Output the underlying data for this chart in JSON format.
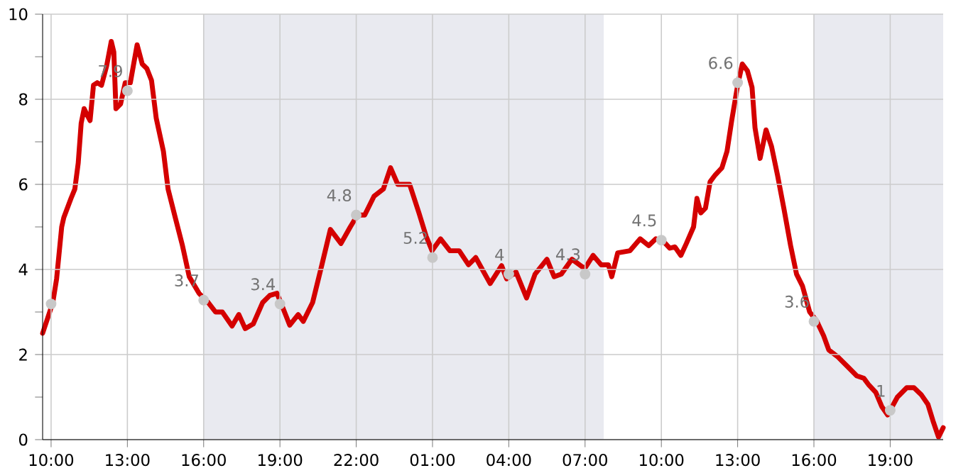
{
  "chart_data": {
    "type": "line",
    "xlim": [
      "2000-01-01T09:40",
      "2000-01-02T21:05"
    ],
    "ylim": [
      0,
      10
    ],
    "xticks": [
      {
        "value": "2000-01-01T10:00",
        "label": "10:00"
      },
      {
        "value": "2000-01-01T13:00",
        "label": "13:00"
      },
      {
        "value": "2000-01-01T16:00",
        "label": "16:00"
      },
      {
        "value": "2000-01-01T19:00",
        "label": "19:00"
      },
      {
        "value": "2000-01-01T22:00",
        "label": "22:00"
      },
      {
        "value": "2000-01-02T01:00",
        "label": "01:00"
      },
      {
        "value": "2000-01-02T04:00",
        "label": "04:00"
      },
      {
        "value": "2000-01-02T07:00",
        "label": "07:00"
      },
      {
        "value": "2000-01-02T10:00",
        "label": "10:00"
      },
      {
        "value": "2000-01-02T13:00",
        "label": "13:00"
      },
      {
        "value": "2000-01-02T16:00",
        "label": "16:00"
      },
      {
        "value": "2000-01-02T19:00",
        "label": "19:00"
      }
    ],
    "yticks": [
      0,
      {
        "value": 1,
        "label": null
      },
      2,
      {
        "value": 3,
        "label": null
      },
      4,
      {
        "value": 5,
        "label": null
      },
      6,
      {
        "value": 7,
        "label": null
      },
      8,
      {
        "value": 9,
        "label": null
      },
      10
    ],
    "grid": true,
    "bands": [
      {
        "axis": "x",
        "from": "2000-01-01T16:00",
        "to": "2000-01-02T07:44",
        "color": "#e9eaf0"
      },
      {
        "axis": "x",
        "from": "2000-01-02T16:00",
        "to": "2000-01-02T21:05",
        "color": "#e9eaf0"
      }
    ],
    "series": [
      {
        "color": "#d40000",
        "marker": "none",
        "x": [
          "2000-01-01T09:40",
          "2000-01-01T10:04",
          "2000-01-01T10:13",
          "2000-01-01T10:25",
          "2000-01-01T10:30",
          "2000-01-01T10:47",
          "2000-01-01T10:56",
          "2000-01-01T11:04",
          "2000-01-01T11:11",
          "2000-01-01T11:18",
          "2000-01-01T11:26",
          "2000-01-01T11:32",
          "2000-01-01T11:40",
          "2000-01-01T11:49",
          "2000-01-01T11:59",
          "2000-01-01T12:11",
          "2000-01-01T12:22",
          "2000-01-01T12:28",
          "2000-01-01T12:33",
          "2000-01-01T12:44",
          "2000-01-01T12:55",
          "2000-01-01T13:07",
          "2000-01-01T13:14",
          "2000-01-01T13:23",
          "2000-01-01T13:35",
          "2000-01-01T13:46",
          "2000-01-01T13:57",
          "2000-01-01T14:08",
          "2000-01-01T14:25",
          "2000-01-01T14:36",
          "2000-01-01T14:53",
          "2000-01-01T15:10",
          "2000-01-01T15:26",
          "2000-01-01T15:49",
          "2000-01-01T16:11",
          "2000-01-01T16:28",
          "2000-01-01T16:44",
          "2000-01-01T17:07",
          "2000-01-01T17:23",
          "2000-01-01T17:38",
          "2000-01-01T17:57",
          "2000-01-01T18:19",
          "2000-01-01T18:36",
          "2000-01-01T18:53",
          "2000-01-01T19:04",
          "2000-01-01T19:23",
          "2000-01-01T19:43",
          "2000-01-01T19:55",
          "2000-01-01T20:17",
          "2000-01-01T20:39",
          "2000-01-01T20:59",
          "2000-01-01T21:24",
          "2000-01-01T21:46",
          "2000-01-01T22:03",
          "2000-01-01T22:20",
          "2000-01-01T22:42",
          "2000-01-01T23:04",
          "2000-01-01T23:21",
          "2000-01-01T23:38",
          "2000-01-02T00:06",
          "2000-01-02T00:28",
          "2000-01-02T00:45",
          "2000-01-02T00:59",
          "2000-01-02T01:19",
          "2000-01-02T01:41",
          "2000-01-02T02:03",
          "2000-01-02T02:25",
          "2000-01-02T02:42",
          "2000-01-02T03:16",
          "2000-01-02T03:43",
          "2000-01-02T03:55",
          "2000-01-02T04:17",
          "2000-01-02T04:42",
          "2000-01-02T05:02",
          "2000-01-02T05:30",
          "2000-01-02T05:47",
          "2000-01-02T06:04",
          "2000-01-02T06:29",
          "2000-01-02T06:59",
          "2000-01-02T07:19",
          "2000-01-02T07:38",
          "2000-01-02T07:55",
          "2000-01-02T08:03",
          "2000-01-02T08:17",
          "2000-01-02T08:46",
          "2000-01-02T09:10",
          "2000-01-02T09:30",
          "2000-01-02T09:47",
          "2000-01-02T10:04",
          "2000-01-02T10:20",
          "2000-01-02T10:32",
          "2000-01-02T10:46",
          "2000-01-02T10:59",
          "2000-01-02T11:16",
          "2000-01-02T11:24",
          "2000-01-02T11:33",
          "2000-01-02T11:44",
          "2000-01-02T11:55",
          "2000-01-02T12:07",
          "2000-01-02T12:23",
          "2000-01-02T12:35",
          "2000-01-02T12:46",
          "2000-01-02T13:00",
          "2000-01-02T13:11",
          "2000-01-02T13:23",
          "2000-01-02T13:34",
          "2000-01-02T13:41",
          "2000-01-02T13:53",
          "2000-01-02T14:07",
          "2000-01-02T14:20",
          "2000-01-02T14:34",
          "2000-01-02T14:49",
          "2000-01-02T15:05",
          "2000-01-02T15:19",
          "2000-01-02T15:33",
          "2000-01-02T15:50",
          "2000-01-02T16:07",
          "2000-01-02T16:23",
          "2000-01-02T16:35",
          "2000-01-02T16:57",
          "2000-01-02T17:19",
          "2000-01-02T17:41",
          "2000-01-02T17:58",
          "2000-01-02T18:10",
          "2000-01-02T18:26",
          "2000-01-02T18:40",
          "2000-01-02T18:54",
          "2000-01-02T19:17",
          "2000-01-02T19:39",
          "2000-01-02T19:56",
          "2000-01-02T20:13",
          "2000-01-02T20:29",
          "2000-01-02T20:41",
          "2000-01-02T20:54",
          "2000-01-02T21:05"
        ],
        "values": [
          2.5,
          3.22,
          3.78,
          5.0,
          5.22,
          5.67,
          5.89,
          6.5,
          7.44,
          7.78,
          7.61,
          7.5,
          8.33,
          8.39,
          8.33,
          8.78,
          9.36,
          9.11,
          7.78,
          7.89,
          8.39,
          8.39,
          8.78,
          9.28,
          8.83,
          8.72,
          8.44,
          7.56,
          6.78,
          5.89,
          5.22,
          4.56,
          3.83,
          3.44,
          3.22,
          3.0,
          3.0,
          2.67,
          2.94,
          2.61,
          2.72,
          3.22,
          3.39,
          3.44,
          3.17,
          2.69,
          2.94,
          2.78,
          3.22,
          4.11,
          4.94,
          4.61,
          5.0,
          5.28,
          5.28,
          5.72,
          5.89,
          6.39,
          6.0,
          6.0,
          5.33,
          4.78,
          4.44,
          4.72,
          4.44,
          4.44,
          4.11,
          4.28,
          3.67,
          4.09,
          3.78,
          3.94,
          3.33,
          3.89,
          4.24,
          3.83,
          3.89,
          4.24,
          4.02,
          4.33,
          4.11,
          4.11,
          3.83,
          4.39,
          4.44,
          4.72,
          4.56,
          4.72,
          4.67,
          4.5,
          4.53,
          4.33,
          4.61,
          5.0,
          5.67,
          5.33,
          5.44,
          6.06,
          6.22,
          6.39,
          6.78,
          7.5,
          8.33,
          8.83,
          8.67,
          8.28,
          7.33,
          6.61,
          7.28,
          6.89,
          6.22,
          5.44,
          4.56,
          3.89,
          3.61,
          3.0,
          2.78,
          2.44,
          2.11,
          1.94,
          1.72,
          1.5,
          1.44,
          1.28,
          1.11,
          0.78,
          0.58,
          1.0,
          1.22,
          1.22,
          1.06,
          0.83,
          0.44,
          0.06,
          0.28
        ]
      },
      {
        "type": "scatter",
        "color": "#c8c8c8",
        "marker": "circle",
        "x": [
          "2000-01-01T10:00",
          "2000-01-01T13:00",
          "2000-01-01T16:00",
          "2000-01-01T19:00",
          "2000-01-01T22:00",
          "2000-01-02T01:00",
          "2000-01-02T04:00",
          "2000-01-02T07:00",
          "2000-01-02T10:00",
          "2000-01-02T13:00",
          "2000-01-02T16:00",
          "2000-01-02T19:00"
        ],
        "values": [
          3.19,
          8.2,
          3.28,
          3.19,
          5.28,
          4.28,
          3.89,
          3.89,
          4.69,
          8.39,
          2.78,
          0.69
        ]
      }
    ],
    "annotations": [
      {
        "text": "7.9",
        "x": "2000-01-01T13:00",
        "y": 8.2
      },
      {
        "text": "3.7",
        "x": "2000-01-01T16:00",
        "y": 3.28
      },
      {
        "text": "3.4",
        "x": "2000-01-01T19:00",
        "y": 3.19
      },
      {
        "text": "4.8",
        "x": "2000-01-01T22:00",
        "y": 5.28
      },
      {
        "text": "5.2",
        "x": "2000-01-02T01:00",
        "y": 4.28
      },
      {
        "text": "4",
        "x": "2000-01-02T04:00",
        "y": 3.89
      },
      {
        "text": "4.3",
        "x": "2000-01-02T07:00",
        "y": 3.89
      },
      {
        "text": "4.5",
        "x": "2000-01-02T10:00",
        "y": 4.69
      },
      {
        "text": "6.6",
        "x": "2000-01-02T13:00",
        "y": 8.39
      },
      {
        "text": "3.6",
        "x": "2000-01-02T16:00",
        "y": 2.78
      },
      {
        "text": "1",
        "x": "2000-01-02T19:00",
        "y": 0.69
      }
    ]
  }
}
